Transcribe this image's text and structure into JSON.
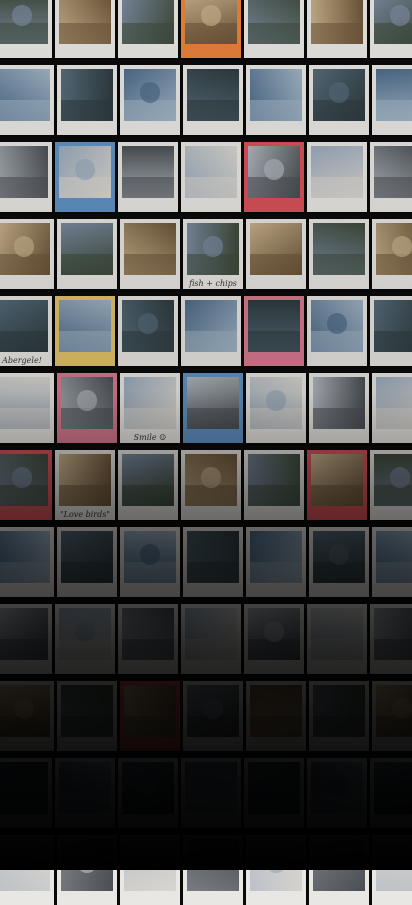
{
  "captions": {
    "fish_chips": "fish + chips",
    "abergele": "Abergele!",
    "smile": "Smile ☺",
    "lovebirds": "\"Love birds\""
  },
  "colors": {
    "frame_white": "#e9e7e3",
    "frame_orange": "#e8823a",
    "frame_blue": "#5f93c4",
    "frame_red": "#d8515a",
    "frame_yellow": "#e3c46a",
    "frame_pink": "#d97a8f"
  }
}
